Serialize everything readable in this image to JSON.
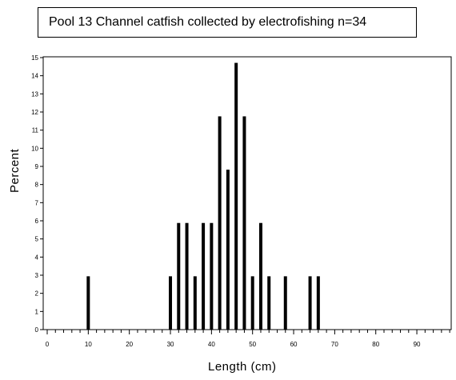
{
  "chart_data": {
    "type": "bar",
    "title": "Pool 13 Channel catfish collected by electrofishing n=34",
    "xlabel": "Length (cm)",
    "ylabel": "Percent",
    "xlim": [
      0,
      99
    ],
    "ylim": [
      0,
      15
    ],
    "x_ticks": [
      "0",
      "10",
      "20",
      "30",
      "40",
      "50",
      "60",
      "70",
      "80",
      "90"
    ],
    "y_ticks": [
      "0",
      "1",
      "2",
      "3",
      "4",
      "5",
      "6",
      "7",
      "8",
      "9",
      "10",
      "11",
      "12",
      "13",
      "14",
      "15"
    ],
    "bar_color": "#000000",
    "series": [
      {
        "x": [
          10,
          30,
          32,
          34,
          36,
          38,
          40,
          42,
          44,
          46,
          48,
          50,
          52,
          54,
          58,
          64,
          66
        ],
        "values": [
          2.94,
          2.94,
          5.88,
          5.88,
          2.94,
          5.88,
          5.88,
          11.76,
          8.82,
          14.71,
          11.76,
          2.94,
          5.88,
          2.94,
          2.94,
          2.94,
          2.94
        ]
      }
    ]
  }
}
